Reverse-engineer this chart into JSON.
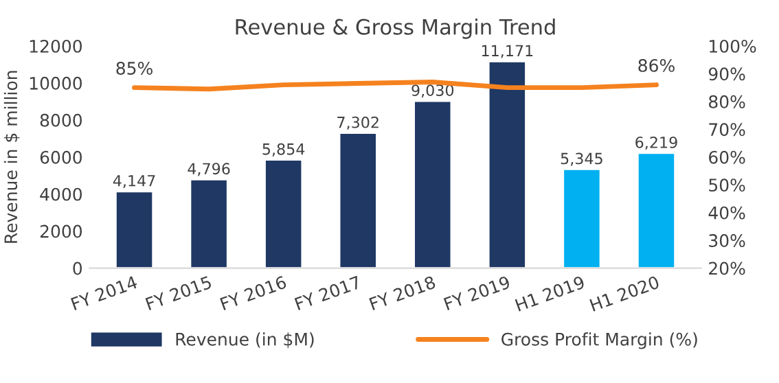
{
  "chart_data": {
    "type": "bar",
    "title": "Revenue & Gross Margin Trend",
    "ylabel": "Revenue in $ million",
    "categories": [
      "FY 2014",
      "FY 2015",
      "FY 2016",
      "FY 2017",
      "FY 2018",
      "FY 2019",
      "H1 2019",
      "H1 2020"
    ],
    "series": [
      {
        "name": "Revenue (in $M)",
        "color": "#1f3864",
        "colors": [
          "#1f3864",
          "#1f3864",
          "#1f3864",
          "#1f3864",
          "#1f3864",
          "#1f3864",
          "#00b0f0",
          "#00b0f0"
        ],
        "values": [
          4147,
          4796,
          5854,
          7302,
          9030,
          11171,
          5345,
          6219
        ],
        "value_labels": [
          "4,147",
          "4,796",
          "5,854",
          "7,302",
          "9,030",
          "11,171",
          "5,345",
          "6,219"
        ]
      },
      {
        "name": "Gross Profit Margin (%)",
        "type": "line",
        "axis": "y2",
        "color": "#f5821f",
        "values": [
          85,
          84.5,
          86,
          86.5,
          87,
          85,
          85,
          86
        ],
        "value_labels": [
          "85%",
          null,
          null,
          null,
          null,
          null,
          null,
          "86%"
        ]
      }
    ],
    "ylim": [
      0,
      12000
    ],
    "yticks": [
      0,
      2000,
      4000,
      6000,
      8000,
      10000,
      12000
    ],
    "y2lim": [
      20,
      100
    ],
    "y2ticks": [
      {
        "value": 20,
        "label": "20%"
      },
      {
        "value": 30,
        "label": "30%"
      },
      {
        "value": 40,
        "label": "40%"
      },
      {
        "value": 50,
        "label": "50%"
      },
      {
        "value": 60,
        "label": "60%"
      },
      {
        "value": 70,
        "label": "70%"
      },
      {
        "value": 80,
        "label": "80%"
      },
      {
        "value": 90,
        "label": "90%"
      },
      {
        "value": 100,
        "label": "100%"
      }
    ],
    "grid": false,
    "legend": "bottom",
    "marker": "none",
    "line_style": "solid"
  }
}
